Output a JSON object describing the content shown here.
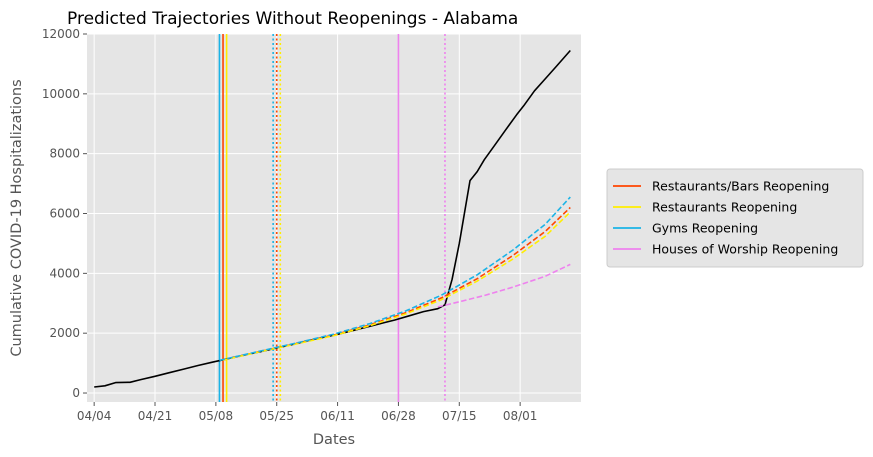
{
  "chart_data": {
    "type": "line",
    "title": "Predicted Trajectories Without Reopenings - Alabama",
    "xlabel": "Dates",
    "ylabel": "Cumulative COVID-19 Hospitalizations",
    "x_ticks": [
      "04/04",
      "04/21",
      "05/08",
      "05/25",
      "06/11",
      "06/28",
      "07/15",
      "08/01"
    ],
    "y_ticks": [
      0,
      2000,
      4000,
      6000,
      8000,
      10000,
      12000
    ],
    "ylim": [
      -300,
      12000
    ],
    "xlim": [
      "04/02",
      "08/18"
    ],
    "grid": true,
    "legend_position": "outside-right",
    "series": [
      {
        "kind": "observed",
        "color": "#000000",
        "style": "solid",
        "points": [
          [
            "04/04",
            200
          ],
          [
            "04/07",
            240
          ],
          [
            "04/10",
            350
          ],
          [
            "04/14",
            360
          ],
          [
            "04/17",
            450
          ],
          [
            "04/21",
            560
          ],
          [
            "04/25",
            680
          ],
          [
            "04/29",
            800
          ],
          [
            "05/03",
            920
          ],
          [
            "05/07",
            1030
          ],
          [
            "05/10",
            1110
          ],
          [
            "05/14",
            1220
          ],
          [
            "05/18",
            1320
          ],
          [
            "05/22",
            1420
          ],
          [
            "05/26",
            1530
          ],
          [
            "05/30",
            1640
          ],
          [
            "06/03",
            1760
          ],
          [
            "06/07",
            1860
          ],
          [
            "06/11",
            1960
          ],
          [
            "06/15",
            2080
          ],
          [
            "06/19",
            2200
          ],
          [
            "06/23",
            2320
          ],
          [
            "06/27",
            2440
          ],
          [
            "07/01",
            2580
          ],
          [
            "07/05",
            2720
          ],
          [
            "07/09",
            2820
          ],
          [
            "07/11",
            2950
          ],
          [
            "07/13",
            3800
          ],
          [
            "07/15",
            5000
          ],
          [
            "07/18",
            7100
          ],
          [
            "07/20",
            7400
          ],
          [
            "07/22",
            7800
          ],
          [
            "07/25",
            8300
          ],
          [
            "07/28",
            8800
          ],
          [
            "07/31",
            9300
          ],
          [
            "08/02",
            9600
          ],
          [
            "08/05",
            10100
          ],
          [
            "08/08",
            10500
          ],
          [
            "08/11",
            10900
          ],
          [
            "08/15",
            11450
          ]
        ]
      },
      {
        "name": "Restaurants/Bars Reopening",
        "color": "#ff4500",
        "style": "dashed",
        "points": [
          [
            "05/10",
            1100
          ],
          [
            "05/20",
            1380
          ],
          [
            "05/30",
            1640
          ],
          [
            "06/10",
            1940
          ],
          [
            "06/20",
            2280
          ],
          [
            "06/30",
            2680
          ],
          [
            "07/10",
            3180
          ],
          [
            "07/20",
            3820
          ],
          [
            "07/30",
            4600
          ],
          [
            "08/08",
            5400
          ],
          [
            "08/15",
            6200
          ]
        ]
      },
      {
        "name": "Restaurants Reopening",
        "color": "#ffee00",
        "style": "dashed",
        "points": [
          [
            "05/10",
            1100
          ],
          [
            "05/20",
            1370
          ],
          [
            "05/30",
            1630
          ],
          [
            "06/10",
            1920
          ],
          [
            "06/20",
            2250
          ],
          [
            "06/30",
            2640
          ],
          [
            "07/10",
            3120
          ],
          [
            "07/20",
            3740
          ],
          [
            "07/30",
            4480
          ],
          [
            "08/08",
            5240
          ],
          [
            "08/15",
            6050
          ]
        ]
      },
      {
        "name": "Gyms Reopening",
        "color": "#1ab3e6",
        "style": "dashed",
        "points": [
          [
            "05/09",
            1090
          ],
          [
            "05/20",
            1390
          ],
          [
            "05/30",
            1660
          ],
          [
            "06/10",
            1970
          ],
          [
            "06/20",
            2320
          ],
          [
            "06/30",
            2740
          ],
          [
            "07/10",
            3270
          ],
          [
            "07/20",
            3950
          ],
          [
            "07/30",
            4780
          ],
          [
            "08/08",
            5640
          ],
          [
            "08/15",
            6550
          ]
        ]
      },
      {
        "name": "Houses of Worship Reopening",
        "color": "#ee82ee",
        "style": "dashed",
        "points": [
          [
            "07/09",
            2880
          ],
          [
            "07/15",
            3050
          ],
          [
            "07/22",
            3260
          ],
          [
            "07/30",
            3540
          ],
          [
            "08/08",
            3900
          ],
          [
            "08/15",
            4300
          ]
        ]
      }
    ],
    "vertical_lines": [
      {
        "date": "05/09",
        "color": "#1ab3e6",
        "style": "solid"
      },
      {
        "date": "05/10",
        "color": "#ff4500",
        "style": "solid"
      },
      {
        "date": "05/11",
        "color": "#ffee00",
        "style": "solid"
      },
      {
        "date": "05/24",
        "color": "#1ab3e6",
        "style": "dotted"
      },
      {
        "date": "05/25",
        "color": "#ff4500",
        "style": "dotted"
      },
      {
        "date": "05/26",
        "color": "#ffee00",
        "style": "dotted"
      },
      {
        "date": "06/28",
        "color": "#ee82ee",
        "style": "solid"
      },
      {
        "date": "07/11",
        "color": "#ee82ee",
        "style": "dotted"
      }
    ]
  }
}
